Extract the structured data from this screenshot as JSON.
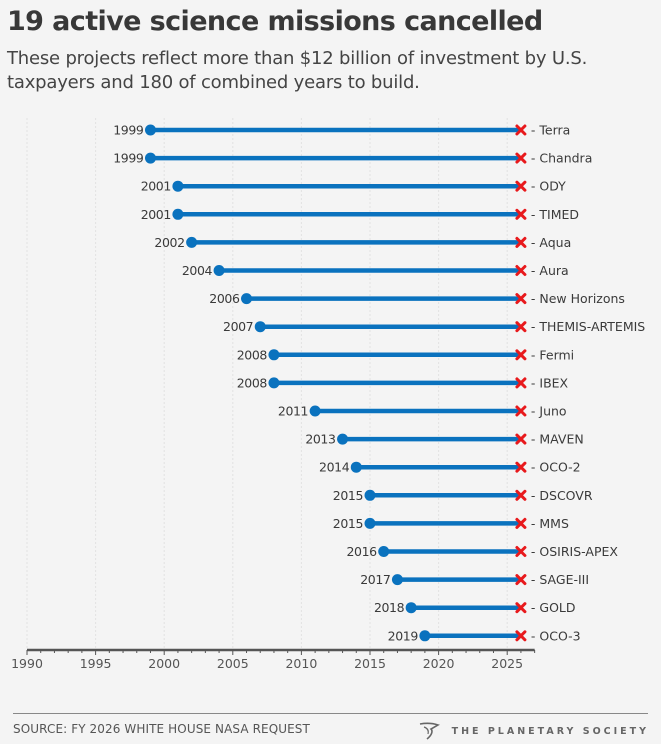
{
  "header": {
    "title": "19 active science missions cancelled",
    "subtitle": "These projects reflect more than $12 billion of investment by U.S. taxpayers and 180 of combined years to build."
  },
  "footer": {
    "source": "SOURCE: FY 2026 WHITE HOUSE NASA REQUEST",
    "brand": "THE PLANETARY SOCIETY",
    "brand_icon": "planetary-society-logo-icon"
  },
  "colors": {
    "line": "#0a72be",
    "start_dot": "#0a72be",
    "end_marker": "#e8191c",
    "text": "#3a3a3a",
    "grid": "#e2e2e2",
    "axis": "#555555",
    "background": "#f4f4f4"
  },
  "chart_data": {
    "type": "dumbbell",
    "title": "19 active science missions cancelled",
    "xlabel": "",
    "ylabel": "",
    "xlim": [
      1990,
      2027
    ],
    "xticks": [
      1990,
      1995,
      2000,
      2005,
      2010,
      2015,
      2020,
      2025
    ],
    "grid": true,
    "end_year": 2026,
    "end_marker": "cross",
    "label_prefix": "- ",
    "series": [
      {
        "name": "Terra",
        "start": 1999,
        "end": 2026
      },
      {
        "name": "Chandra",
        "start": 1999,
        "end": 2026
      },
      {
        "name": "ODY",
        "start": 2001,
        "end": 2026
      },
      {
        "name": "TIMED",
        "start": 2001,
        "end": 2026
      },
      {
        "name": "Aqua",
        "start": 2002,
        "end": 2026
      },
      {
        "name": "Aura",
        "start": 2004,
        "end": 2026
      },
      {
        "name": "New Horizons",
        "start": 2006,
        "end": 2026
      },
      {
        "name": "THEMIS-ARTEMIS",
        "start": 2007,
        "end": 2026
      },
      {
        "name": "Fermi",
        "start": 2008,
        "end": 2026
      },
      {
        "name": "IBEX",
        "start": 2008,
        "end": 2026
      },
      {
        "name": "Juno",
        "start": 2011,
        "end": 2026
      },
      {
        "name": "MAVEN",
        "start": 2013,
        "end": 2026
      },
      {
        "name": "OCO-2",
        "start": 2014,
        "end": 2026
      },
      {
        "name": "DSCOVR",
        "start": 2015,
        "end": 2026
      },
      {
        "name": "MMS",
        "start": 2015,
        "end": 2026
      },
      {
        "name": "OSIRIS-APEX",
        "start": 2016,
        "end": 2026
      },
      {
        "name": "SAGE-III",
        "start": 2017,
        "end": 2026
      },
      {
        "name": "GOLD",
        "start": 2018,
        "end": 2026
      },
      {
        "name": "OCO-3",
        "start": 2019,
        "end": 2026
      }
    ]
  }
}
